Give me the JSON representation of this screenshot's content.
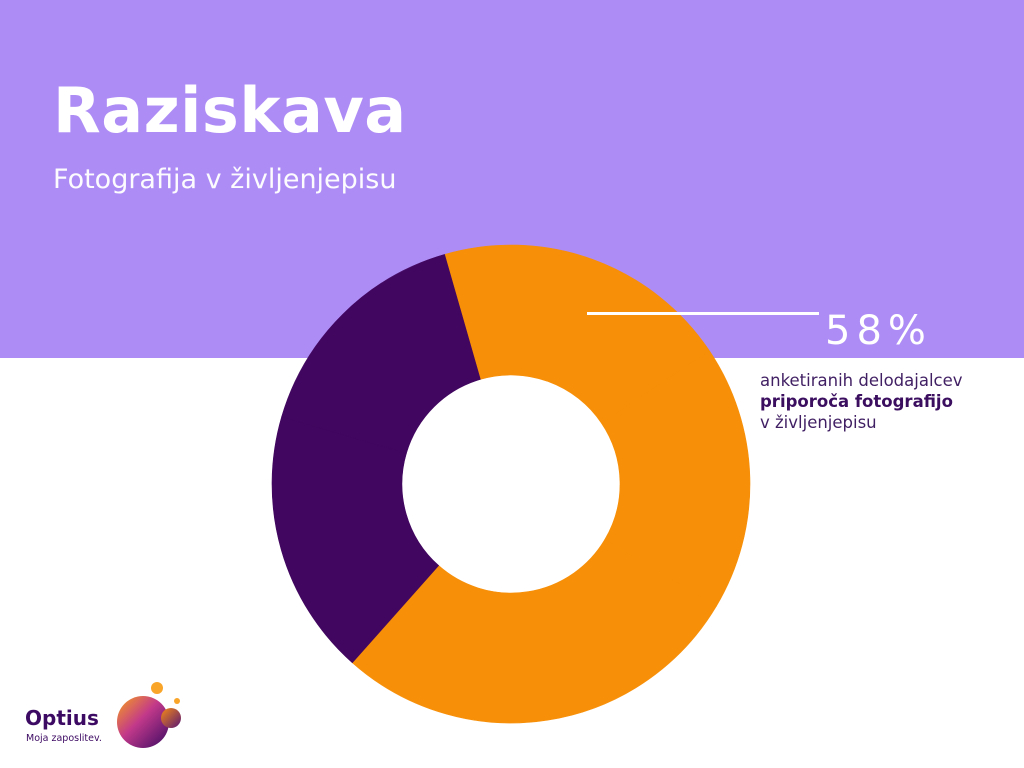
{
  "header": {
    "title": "Raziskava",
    "subtitle": "Fotografija v življenjepisu"
  },
  "callout": {
    "value": "58%",
    "line1": "anketiranih delodajalcev",
    "line2": "priporoča fotografijo",
    "line3": "v življenjepisu"
  },
  "chart_data": {
    "type": "pie",
    "title": "",
    "slices": [
      {
        "value": 18,
        "color": "#f78f08"
      },
      {
        "value": 28,
        "color": "#f78f08"
      },
      {
        "value": 18,
        "color": "#41065f"
      },
      {
        "value": 16,
        "color": "#41065f"
      },
      {
        "value": 20,
        "color": "#f78f08"
      }
    ],
    "start_angle_deg": 326,
    "donut": true
  },
  "logo": {
    "name": "Optius",
    "tagline": "Moja zaposlitev."
  },
  "colors": {
    "band": "#ae8cf5",
    "accent_orange": "#f78f08",
    "accent_purple": "#41065f",
    "text_dark": "#401f63"
  }
}
